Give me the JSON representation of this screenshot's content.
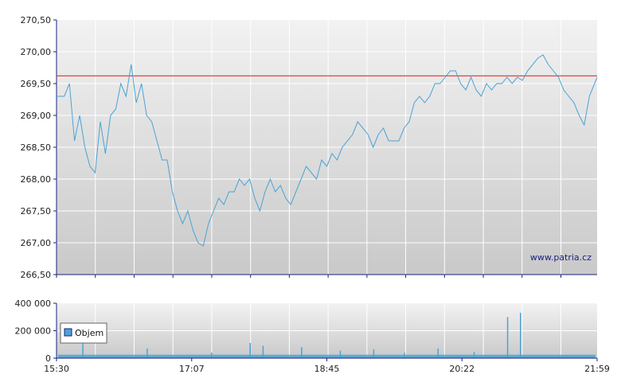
{
  "watermark": "www.patria.cz",
  "colors": {
    "price_line": "#4aa3d6",
    "reference_line": "#e0463a",
    "volume_bar": "#4aa3d6",
    "axis": "#1a237e",
    "grid": "#ffffff",
    "bg_top": "#f2f2f2",
    "bg_bottom": "#c9c9c9"
  },
  "chart_data": [
    {
      "type": "line",
      "title": "",
      "xlabel": "",
      "ylabel": "",
      "ylim": [
        266.5,
        270.5
      ],
      "y_ticks": [
        "270,50",
        "270,00",
        "269,50",
        "269,00",
        "268,50",
        "268,00",
        "267,50",
        "267,00",
        "266,50"
      ],
      "x_range": [
        "15:30",
        "21:59"
      ],
      "reference_line": 269.62,
      "grid": true,
      "series": [
        {
          "values": [
            [
              0,
              269.3
            ],
            [
              3,
              269.3
            ],
            [
              5,
              269.5
            ],
            [
              7,
              268.6
            ],
            [
              9,
              269.0
            ],
            [
              11,
              268.5
            ],
            [
              13,
              268.2
            ],
            [
              15,
              268.1
            ],
            [
              17,
              268.9
            ],
            [
              19,
              268.4
            ],
            [
              21,
              269.0
            ],
            [
              23,
              269.1
            ],
            [
              25,
              269.5
            ],
            [
              27,
              269.3
            ],
            [
              29,
              269.8
            ],
            [
              31,
              269.2
            ],
            [
              33,
              269.5
            ],
            [
              35,
              269.0
            ],
            [
              37,
              268.9
            ],
            [
              39,
              268.6
            ],
            [
              41,
              268.3
            ],
            [
              43,
              268.3
            ],
            [
              45,
              267.8
            ],
            [
              47,
              267.5
            ],
            [
              49,
              267.3
            ],
            [
              51,
              267.5
            ],
            [
              53,
              267.2
            ],
            [
              55,
              267.0
            ],
            [
              57,
              266.95
            ],
            [
              59,
              267.3
            ],
            [
              61,
              267.5
            ],
            [
              63,
              267.7
            ],
            [
              65,
              267.6
            ],
            [
              67,
              267.8
            ],
            [
              69,
              267.8
            ],
            [
              71,
              268.0
            ],
            [
              73,
              267.9
            ],
            [
              75,
              268.0
            ],
            [
              77,
              267.7
            ],
            [
              79,
              267.5
            ],
            [
              81,
              267.8
            ],
            [
              83,
              268.0
            ],
            [
              85,
              267.8
            ],
            [
              87,
              267.9
            ],
            [
              89,
              267.7
            ],
            [
              91,
              267.6
            ],
            [
              93,
              267.8
            ],
            [
              95,
              268.0
            ],
            [
              97,
              268.2
            ],
            [
              99,
              268.1
            ],
            [
              101,
              268.0
            ],
            [
              103,
              268.3
            ],
            [
              105,
              268.2
            ],
            [
              107,
              268.4
            ],
            [
              109,
              268.3
            ],
            [
              111,
              268.5
            ],
            [
              113,
              268.6
            ],
            [
              115,
              268.7
            ],
            [
              117,
              268.9
            ],
            [
              119,
              268.8
            ],
            [
              121,
              268.7
            ],
            [
              123,
              268.5
            ],
            [
              125,
              268.7
            ],
            [
              127,
              268.8
            ],
            [
              129,
              268.6
            ],
            [
              131,
              268.6
            ],
            [
              133,
              268.6
            ],
            [
              135,
              268.8
            ],
            [
              137,
              268.9
            ],
            [
              139,
              269.2
            ],
            [
              141,
              269.3
            ],
            [
              143,
              269.2
            ],
            [
              145,
              269.3
            ],
            [
              147,
              269.5
            ],
            [
              149,
              269.5
            ],
            [
              151,
              269.6
            ],
            [
              153,
              269.7
            ],
            [
              155,
              269.7
            ],
            [
              157,
              269.5
            ],
            [
              159,
              269.4
            ],
            [
              161,
              269.6
            ],
            [
              163,
              269.4
            ],
            [
              165,
              269.3
            ],
            [
              167,
              269.5
            ],
            [
              169,
              269.4
            ],
            [
              171,
              269.5
            ],
            [
              173,
              269.5
            ],
            [
              175,
              269.6
            ],
            [
              177,
              269.5
            ],
            [
              179,
              269.6
            ],
            [
              181,
              269.55
            ],
            [
              183,
              269.7
            ],
            [
              185,
              269.8
            ],
            [
              187,
              269.9
            ],
            [
              189,
              269.95
            ],
            [
              191,
              269.8
            ],
            [
              193,
              269.7
            ],
            [
              195,
              269.6
            ],
            [
              197,
              269.4
            ],
            [
              199,
              269.3
            ],
            [
              201,
              269.2
            ],
            [
              203,
              269.0
            ],
            [
              205,
              268.85
            ],
            [
              207,
              269.3
            ],
            [
              209,
              269.5
            ],
            [
              210,
              269.6
            ]
          ]
        }
      ]
    },
    {
      "type": "bar",
      "title": "",
      "ylim": [
        0,
        400000
      ],
      "y_ticks": [
        "400 000",
        "200 000",
        "0"
      ],
      "x_ticks": [
        "15:30",
        "17:07",
        "18:45",
        "20:22",
        "21:59"
      ],
      "legend": {
        "label": "Objem",
        "placement": "left"
      },
      "series": [
        {
          "name": "Objem",
          "baseline": 25000,
          "spikes": [
            [
              10,
              120000
            ],
            [
              35,
              70000
            ],
            [
              60,
              40000
            ],
            [
              75,
              110000
            ],
            [
              80,
              90000
            ],
            [
              95,
              80000
            ],
            [
              110,
              55000
            ],
            [
              123,
              65000
            ],
            [
              135,
              40000
            ],
            [
              148,
              70000
            ],
            [
              162,
              45000
            ],
            [
              175,
              300000
            ],
            [
              180,
              330000
            ]
          ]
        }
      ]
    }
  ]
}
